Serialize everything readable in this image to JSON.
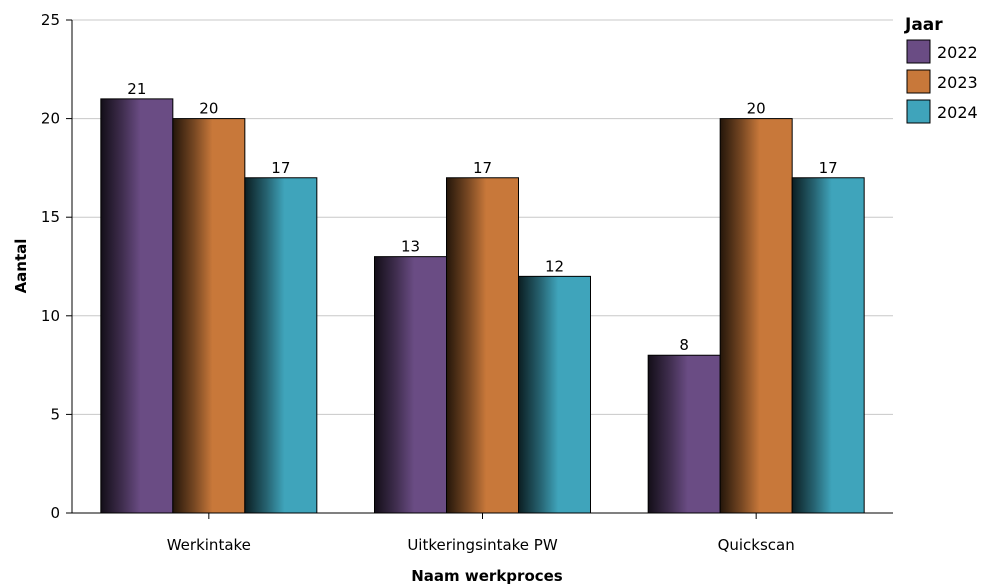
{
  "chart_data": {
    "type": "bar",
    "categories": [
      "Werkintake",
      "Uitkeringsintake PW",
      "Quickscan"
    ],
    "series": [
      {
        "name": "2022",
        "values": [
          21,
          13,
          8
        ],
        "color": "#6a4c84"
      },
      {
        "name": "2023",
        "values": [
          20,
          17,
          20
        ],
        "color": "#c8783a"
      },
      {
        "name": "2024",
        "values": [
          17,
          12,
          17
        ],
        "color": "#3fa4bb"
      }
    ],
    "xlabel": "Naam werkproces",
    "ylabel": "Aantal",
    "ylim": [
      0,
      25
    ],
    "yticks": [
      0,
      5,
      10,
      15,
      20,
      25
    ],
    "legend_title": "Jaar",
    "legend_position": "top-right",
    "grid": true
  }
}
